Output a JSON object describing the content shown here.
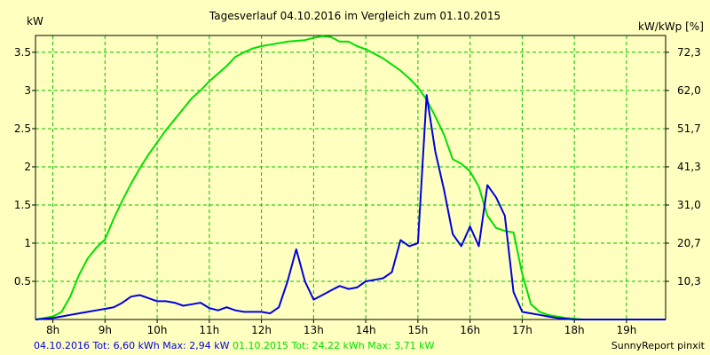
{
  "chart_data": {
    "type": "line",
    "title": "Tagesverlauf 04.10.2016 im Vergleich zum 01.10.2015",
    "ylabel_left": "kW",
    "ylabel_right": "kW/kWp [%]",
    "x_ticks": [
      "8h",
      "9h",
      "10h",
      "11h",
      "12h",
      "13h",
      "14h",
      "15h",
      "16h",
      "17h",
      "18h",
      "19h"
    ],
    "x_tick_values": [
      8,
      9,
      10,
      11,
      12,
      13,
      14,
      15,
      16,
      17,
      18,
      19
    ],
    "xlim": [
      7.667,
      19.75
    ],
    "ylim": [
      0,
      3.72
    ],
    "y_ticks_left": [
      "0.5",
      "1",
      "1.5",
      "2",
      "2.5",
      "3",
      "3.5"
    ],
    "y_tick_values_left": [
      0.5,
      1,
      1.5,
      2,
      2.5,
      3,
      3.5
    ],
    "y_ticks_right": [
      "10,3",
      "20,7",
      "31,0",
      "41,3",
      "51,7",
      "62,0",
      "72,3"
    ],
    "y_tick_values_right": [
      0.5,
      1,
      1.5,
      2,
      2.5,
      3,
      3.5
    ],
    "grid": true,
    "background_color": "#ffffc0",
    "grid_color": "#00c000",
    "series": [
      {
        "name": "04.10.2016",
        "color": "#0000e0",
        "x": [
          7.667,
          8.0,
          8.167,
          8.333,
          8.5,
          8.667,
          8.833,
          9.0,
          9.167,
          9.333,
          9.5,
          9.667,
          9.833,
          10.0,
          10.167,
          10.333,
          10.5,
          10.667,
          10.833,
          11.0,
          11.167,
          11.333,
          11.5,
          11.667,
          11.833,
          12.0,
          12.167,
          12.333,
          12.5,
          12.667,
          12.833,
          13.0,
          13.167,
          13.333,
          13.5,
          13.667,
          13.833,
          14.0,
          14.167,
          14.333,
          14.5,
          14.667,
          14.833,
          15.0,
          15.167,
          15.333,
          15.5,
          15.667,
          15.833,
          16.0,
          16.167,
          16.333,
          16.5,
          16.667,
          16.833,
          17.0,
          17.167,
          17.333,
          17.5,
          17.667,
          17.833,
          18.0,
          18.167,
          18.333,
          18.5,
          18.667,
          18.833,
          19.0,
          19.167,
          19.333,
          19.5,
          19.667,
          19.75
        ],
        "y": [
          0,
          0.02,
          0.04,
          0.06,
          0.08,
          0.1,
          0.12,
          0.14,
          0.16,
          0.22,
          0.3,
          0.32,
          0.28,
          0.24,
          0.24,
          0.22,
          0.18,
          0.2,
          0.22,
          0.15,
          0.12,
          0.16,
          0.12,
          0.1,
          0.1,
          0.1,
          0.08,
          0.16,
          0.5,
          0.92,
          0.5,
          0.26,
          0.32,
          0.38,
          0.44,
          0.4,
          0.42,
          0.5,
          0.52,
          0.54,
          0.62,
          1.04,
          0.96,
          1.0,
          2.94,
          2.2,
          1.7,
          1.12,
          0.96,
          1.22,
          0.96,
          1.76,
          1.6,
          1.36,
          0.36,
          0.1,
          0.08,
          0.06,
          0.04,
          0.02,
          0.01,
          0,
          0,
          0,
          0,
          0,
          0,
          0,
          0,
          0,
          0,
          0,
          0
        ]
      },
      {
        "name": "01.10.2015",
        "color": "#00e000",
        "x": [
          7.667,
          8.0,
          8.167,
          8.333,
          8.5,
          8.667,
          8.833,
          9.0,
          9.167,
          9.333,
          9.5,
          9.667,
          9.833,
          10.0,
          10.167,
          10.333,
          10.5,
          10.667,
          10.833,
          11.0,
          11.167,
          11.333,
          11.5,
          11.667,
          11.833,
          12.0,
          12.167,
          12.333,
          12.5,
          12.667,
          12.833,
          13.0,
          13.167,
          13.333,
          13.5,
          13.667,
          13.833,
          14.0,
          14.167,
          14.333,
          14.5,
          14.667,
          14.833,
          15.0,
          15.167,
          15.333,
          15.5,
          15.667,
          15.833,
          16.0,
          16.167,
          16.333,
          16.5,
          16.667,
          16.833,
          17.0,
          17.167,
          17.333,
          17.5,
          17.667,
          17.833,
          18.0,
          18.167,
          18.333,
          18.5,
          18.667,
          18.833,
          19.0,
          19.167,
          19.333,
          19.5,
          19.667,
          19.75
        ],
        "y": [
          0,
          0.04,
          0.1,
          0.3,
          0.58,
          0.8,
          0.94,
          1.05,
          1.32,
          1.56,
          1.78,
          1.98,
          2.16,
          2.32,
          2.48,
          2.62,
          2.76,
          2.9,
          3.0,
          3.12,
          3.22,
          3.32,
          3.44,
          3.5,
          3.55,
          3.58,
          3.6,
          3.62,
          3.64,
          3.65,
          3.66,
          3.69,
          3.71,
          3.7,
          3.64,
          3.64,
          3.58,
          3.54,
          3.48,
          3.42,
          3.34,
          3.26,
          3.16,
          3.04,
          2.88,
          2.66,
          2.42,
          2.1,
          2.04,
          1.94,
          1.74,
          1.36,
          1.2,
          1.16,
          1.14,
          0.6,
          0.2,
          0.1,
          0.06,
          0.04,
          0.02,
          0.01,
          0,
          0,
          0,
          0,
          0,
          0,
          0,
          0,
          0,
          0,
          0
        ]
      }
    ]
  },
  "footer": {
    "series1_text": "04.10.2016 Tot: 6,60 kWh Max: 2,94 kW",
    "series2_text": "01.10.2015 Tot: 24,22 kWh Max: 3,71 kW",
    "credit": "SunnyReport pinxit",
    "series1_color": "#0000e0",
    "series2_color": "#00e000"
  }
}
